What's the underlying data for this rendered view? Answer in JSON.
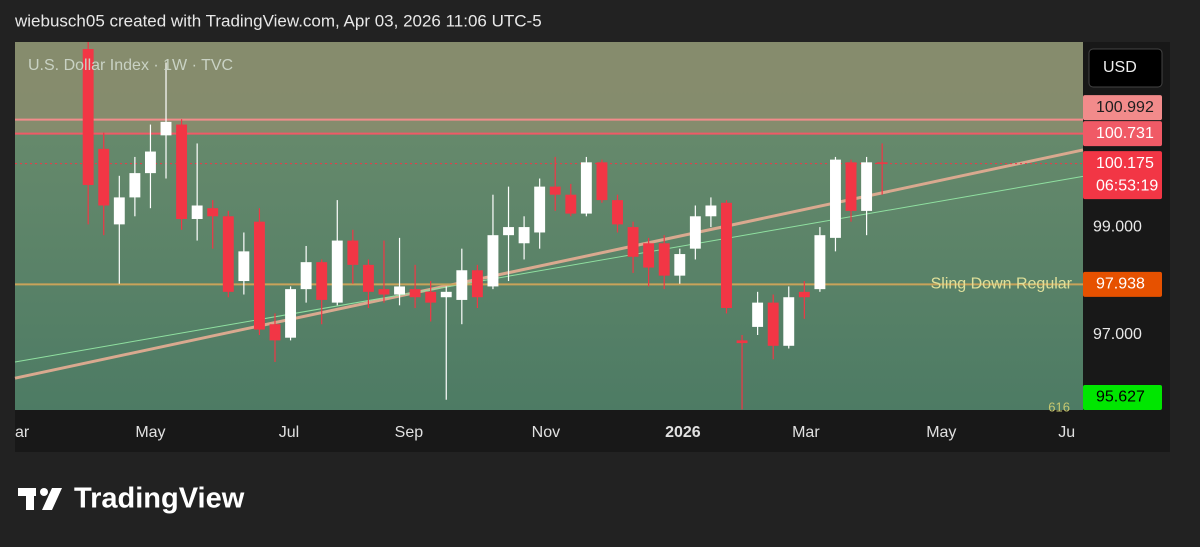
{
  "header": "wiebusch05 created with TradingView.com, Apr 03, 2026 11:06 UTC-5",
  "brand": "TradingView",
  "chart_data": {
    "type": "candlestick",
    "title": "U.S. Dollar Index · 1W · TVC",
    "currency": "USD",
    "up_color": "#ffffff",
    "down_color": "#f23645",
    "open": [
      102.3,
      100.45,
      99.05,
      99.55,
      100.0,
      100.7,
      100.9,
      99.15,
      99.35,
      99.2,
      98.0,
      99.1,
      97.2,
      96.95,
      97.85,
      98.35,
      97.6,
      98.75,
      98.3,
      97.85,
      97.75,
      97.85,
      97.8,
      97.7,
      97.65,
      98.2,
      97.9,
      98.85,
      98.7,
      98.9,
      99.75,
      99.6,
      99.25,
      100.2,
      99.5,
      99.0,
      98.7,
      98.7,
      98.1,
      98.6,
      99.2,
      99.45,
      96.9,
      97.15,
      97.6,
      96.8,
      97.8,
      97.85,
      98.8,
      100.2,
      99.3,
      100.2
    ],
    "high": [
      102.43,
      100.75,
      99.95,
      100.3,
      100.9,
      102.05,
      101.0,
      100.55,
      99.5,
      99.3,
      98.9,
      99.35,
      97.4,
      97.9,
      98.65,
      98.4,
      99.5,
      98.95,
      98.4,
      98.75,
      98.8,
      98.3,
      98.0,
      97.9,
      98.6,
      98.3,
      99.6,
      99.75,
      99.2,
      99.9,
      100.3,
      99.8,
      100.3,
      100.25,
      99.6,
      99.1,
      98.8,
      98.85,
      98.6,
      99.4,
      99.55,
      99.5,
      97.0,
      97.8,
      97.75,
      97.9,
      98.0,
      99.0,
      100.3,
      100.25,
      100.3,
      100.55
    ],
    "low": [
      99.05,
      98.85,
      97.95,
      99.2,
      99.35,
      99.9,
      98.95,
      98.75,
      98.6,
      97.7,
      97.75,
      97.0,
      96.5,
      96.9,
      97.6,
      97.2,
      97.55,
      97.95,
      97.5,
      97.6,
      97.55,
      97.5,
      97.25,
      95.8,
      97.2,
      97.5,
      97.85,
      98.0,
      98.4,
      98.6,
      99.3,
      99.2,
      99.2,
      99.45,
      98.9,
      98.15,
      97.9,
      97.85,
      97.95,
      98.4,
      99.0,
      97.4,
      95.62,
      97.0,
      96.55,
      96.75,
      97.3,
      97.8,
      98.55,
      99.1,
      98.85,
      99.6
    ],
    "close": [
      99.78,
      99.4,
      99.55,
      100.0,
      100.4,
      100.95,
      99.15,
      99.4,
      99.2,
      97.8,
      98.55,
      97.1,
      96.9,
      97.85,
      98.35,
      97.65,
      98.75,
      98.3,
      97.8,
      97.75,
      97.9,
      97.7,
      97.6,
      97.8,
      98.2,
      97.7,
      98.85,
      99.0,
      99.0,
      99.75,
      99.6,
      99.25,
      100.2,
      99.5,
      99.05,
      98.45,
      98.25,
      98.1,
      98.5,
      99.2,
      99.4,
      97.5,
      96.85,
      97.6,
      96.8,
      97.7,
      97.7,
      98.85,
      100.25,
      99.3,
      100.2,
      100.175
    ],
    "xlim": [
      -4.7,
      63.9
    ],
    "xticks": [
      {
        "value": -4.7,
        "label": "ar"
      },
      {
        "value": 4,
        "label": "May"
      },
      {
        "value": 12.9,
        "label": "Jul"
      },
      {
        "value": 20.6,
        "label": "Sep"
      },
      {
        "value": 29.4,
        "label": "Nov"
      },
      {
        "value": 38.2,
        "label": "2026"
      },
      {
        "value": 46.1,
        "label": "Mar"
      },
      {
        "value": 54.8,
        "label": "May"
      },
      {
        "value": 63.4,
        "label": "Ju"
      }
    ],
    "ylim": [
      95.61,
      102.43
    ],
    "yticks": [
      {
        "value": 99,
        "label": "99.000"
      },
      {
        "value": 97,
        "label": "97.000"
      }
    ],
    "levels": [
      {
        "price": 100.992,
        "color": "#f28b8b",
        "text_color": "#1e1e1e"
      },
      {
        "price": 100.731,
        "color": "#f05a66",
        "text_color": "#ffffff"
      },
      {
        "price": 100.175,
        "color": "#f23645",
        "text_color": "#ffffff",
        "countdown": "06:53:19"
      },
      {
        "price": 97.938,
        "color": "#e65100",
        "text_color": "#ffffff",
        "name": "Sling Down Regular",
        "line_color": "#c9a35a"
      },
      {
        "price": 95.627,
        "color": "#00e600",
        "text_color": "#000000"
      }
    ],
    "trendlines": [
      {
        "from": [
          -4.7,
          96.2
        ],
        "to": [
          63.9,
          100.43
        ],
        "color": "#d9a98f",
        "width": 3
      },
      {
        "from": [
          -4.7,
          96.5
        ],
        "to": [
          63.9,
          99.94
        ],
        "color": "#8fe0a0",
        "width": 1
      }
    ],
    "annotation": "616"
  }
}
